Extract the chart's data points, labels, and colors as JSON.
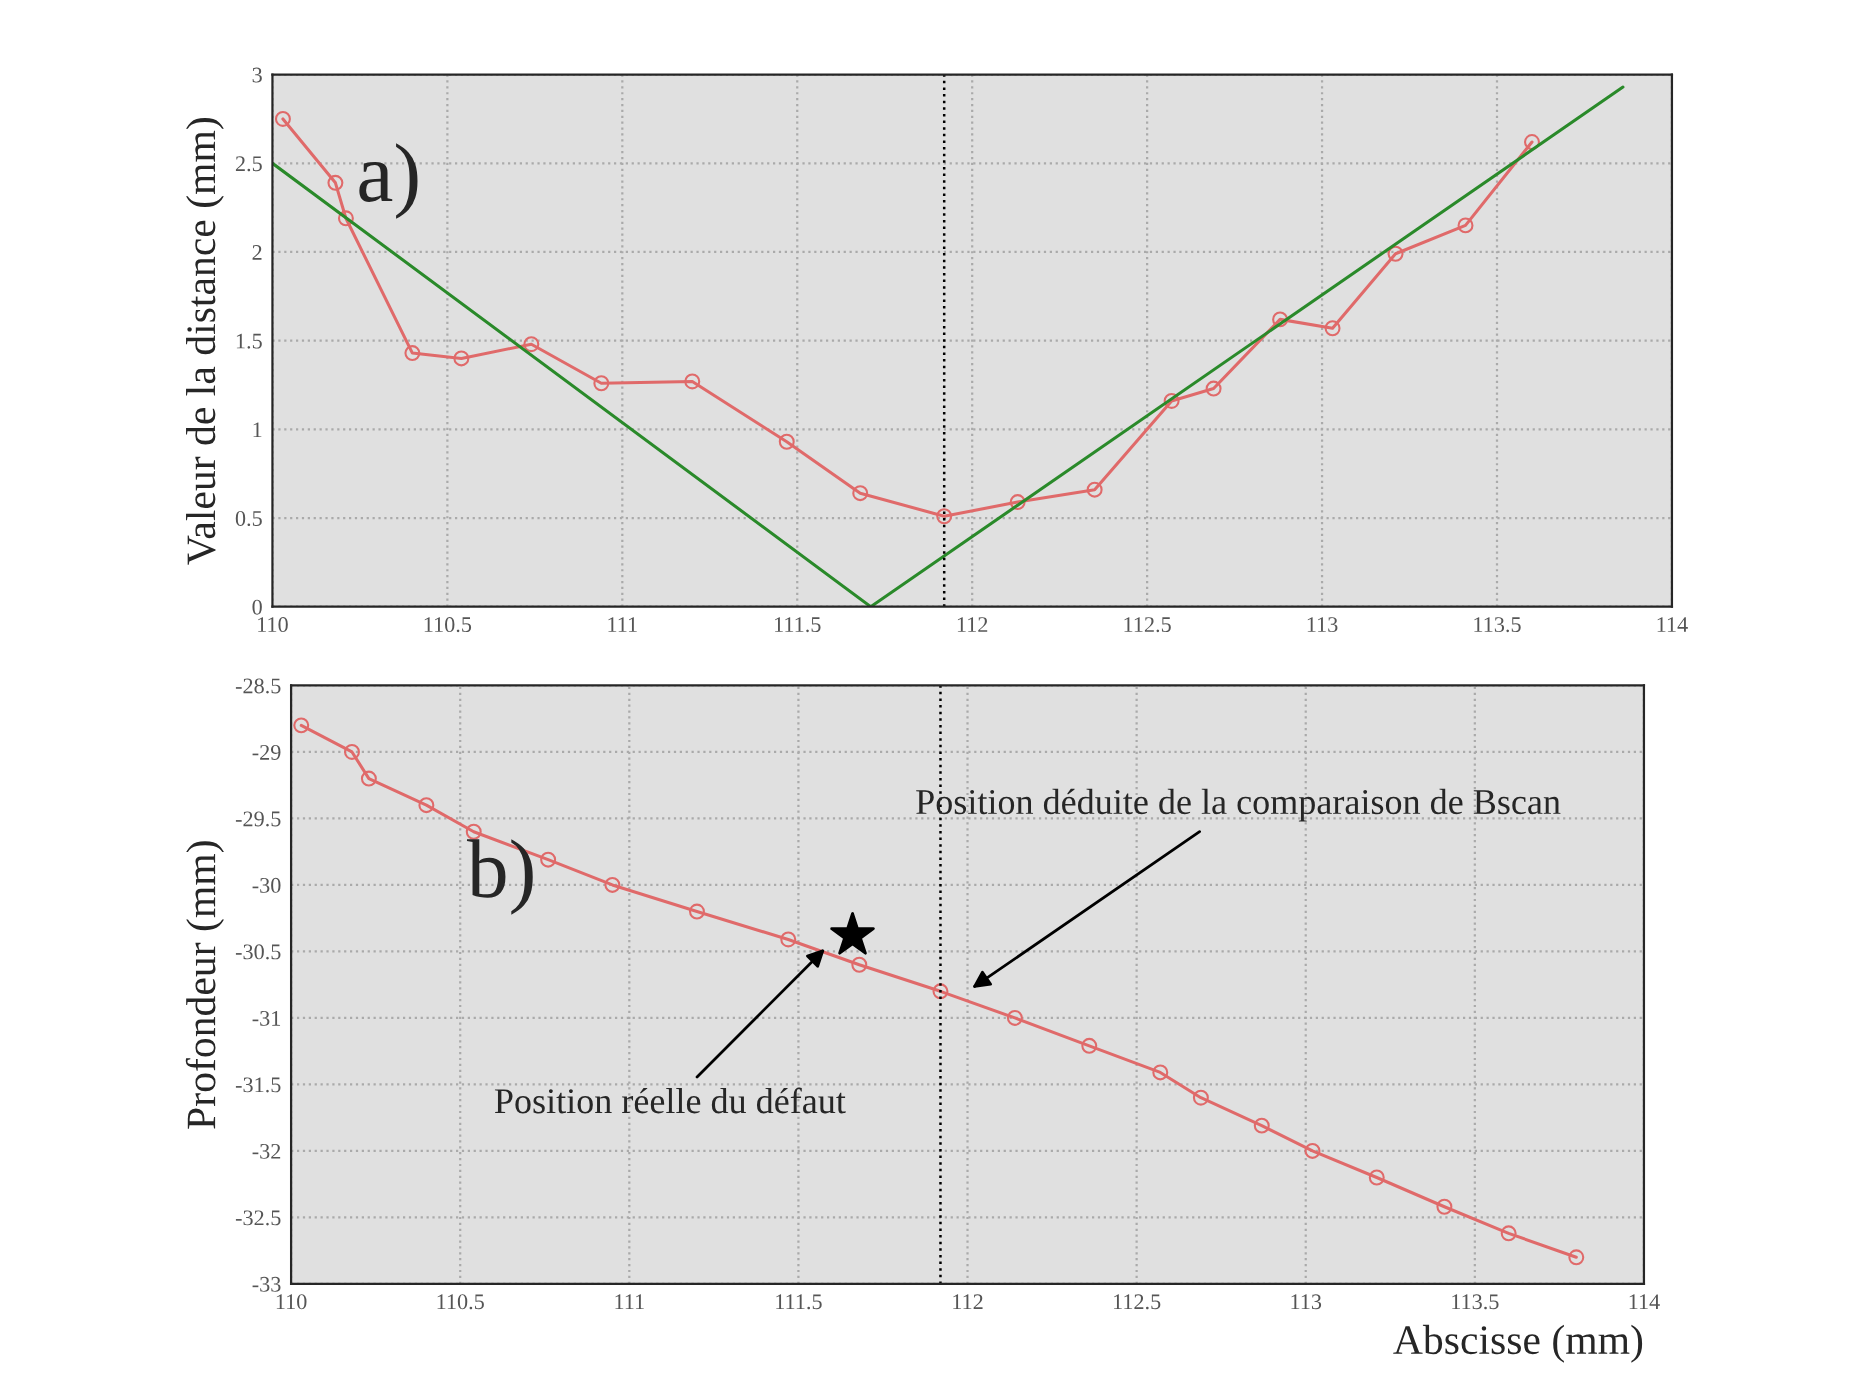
{
  "chart_data": [
    {
      "type": "line",
      "ylabel": "Valeur de la distance (mm)",
      "annotations": [
        "a)"
      ],
      "xlim": [
        110,
        114
      ],
      "ylim": [
        0,
        3
      ],
      "xticks": [
        110,
        110.5,
        111,
        111.5,
        112,
        112.5,
        113,
        113.5,
        114
      ],
      "yticks": [
        0,
        0.5,
        1,
        1.5,
        2,
        2.5,
        3
      ],
      "grid": true,
      "ref_lines": [
        {
          "axis": "x",
          "value": 111.92,
          "color": "#000000",
          "line_style": "dotted"
        }
      ],
      "series": [
        {
          "color": "#e06a6a",
          "marker": "circle",
          "x": [
            110.03,
            110.18,
            110.21,
            110.4,
            110.54,
            110.74,
            110.94,
            111.2,
            111.47,
            111.68,
            111.92,
            112.13,
            112.35,
            112.57,
            112.69,
            112.88,
            113.03,
            113.21,
            113.41,
            113.6
          ],
          "values": [
            2.75,
            2.39,
            2.19,
            1.43,
            1.4,
            1.48,
            1.26,
            1.27,
            0.93,
            0.64,
            0.51,
            0.59,
            0.66,
            1.16,
            1.23,
            1.62,
            1.57,
            1.99,
            2.15,
            2.62
          ]
        },
        {
          "color": "#2a8a2a",
          "marker": "none",
          "x": [
            110,
            111.71,
            113.86
          ],
          "values": [
            2.5,
            0,
            2.93
          ]
        }
      ]
    },
    {
      "type": "line",
      "ylabel": "Profondeur (mm)",
      "xlabel": "Abscisse (mm)",
      "annotations": [
        "b)",
        {
          "text": "Position réelle du défaut",
          "x": 111.59,
          "y": -30.45
        },
        {
          "text": "Position déduite de la comparaison de Bscan",
          "x": 112.0,
          "y": -30.8
        }
      ],
      "xlim": [
        110,
        114
      ],
      "ylim": [
        -33,
        -28.5
      ],
      "xticks": [
        110,
        110.5,
        111,
        111.5,
        112,
        112.5,
        113,
        113.5,
        114
      ],
      "yticks": [
        -33,
        -32.5,
        -32,
        -31.5,
        -31,
        -30.5,
        -30,
        -29.5,
        -29,
        -28.5
      ],
      "grid": true,
      "ref_lines": [
        {
          "axis": "x",
          "value": 111.92,
          "color": "#000000",
          "line_style": "dotted"
        }
      ],
      "series": [
        {
          "color": "#e06a6a",
          "marker": "circle",
          "x": [
            110.03,
            110.18,
            110.23,
            110.4,
            110.54,
            110.76,
            110.95,
            111.2,
            111.47,
            111.68,
            111.92,
            112.14,
            112.36,
            112.57,
            112.69,
            112.87,
            113.02,
            113.21,
            113.41,
            113.6,
            113.8
          ],
          "values": [
            -28.8,
            -29.0,
            -29.2,
            -29.4,
            -29.6,
            -29.81,
            -30.0,
            -30.2,
            -30.41,
            -30.6,
            -30.8,
            -31.0,
            -31.21,
            -31.41,
            -31.6,
            -31.81,
            -32.0,
            -32.2,
            -32.42,
            -32.62,
            -32.8
          ]
        },
        {
          "type": "scatter",
          "color": "#000000",
          "marker": "star",
          "x": [
            111.66
          ],
          "values": [
            -30.38
          ]
        }
      ]
    }
  ]
}
